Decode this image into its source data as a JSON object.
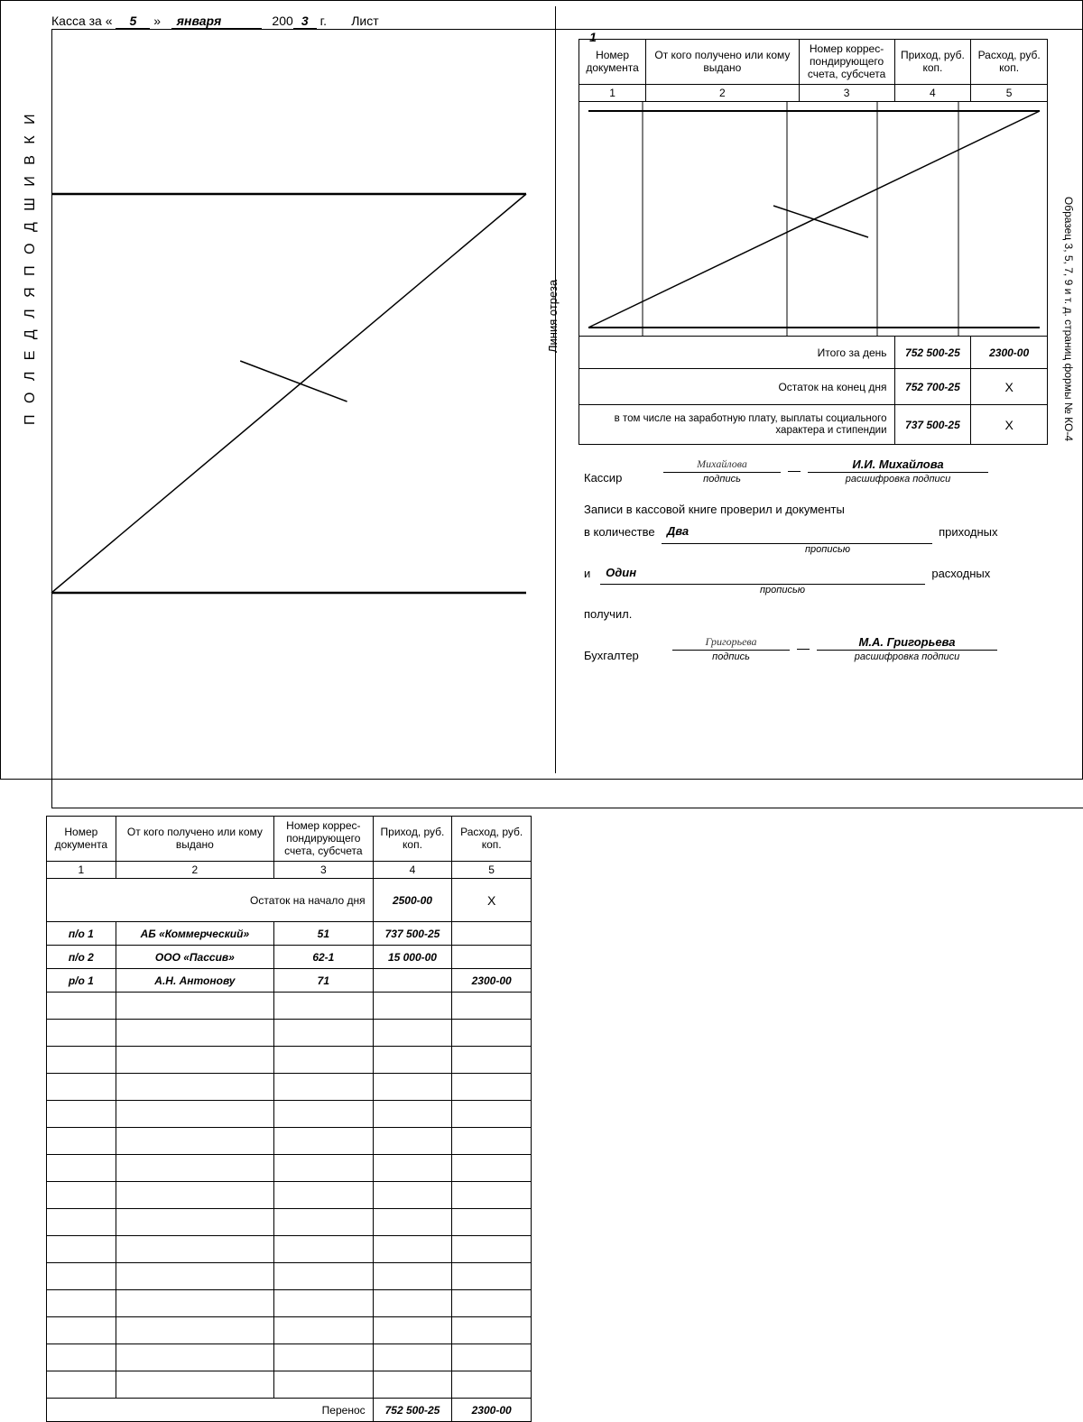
{
  "colors": {
    "line": "#000000",
    "bg": "#ffffff"
  },
  "pageinfo": {
    "kassa_za": "Касса за «",
    "day": "5",
    "raquo": "»",
    "month": "января",
    "year_prefix": "200",
    "year_suffix": "3",
    "year_tail": "г.",
    "sheet_label": "Лист",
    "sheet_no": "1"
  },
  "side_labels": {
    "binding": "П О Л Е   Д Л Я   П О Д Ш И В К И",
    "cut": "Линия отреза",
    "sample": "Образец 3, 5, 7, 9 и т. д. страниц формы № КО-4"
  },
  "columns": {
    "h1": "Номер документа",
    "h2": "От кого получено или кому выдано",
    "h3": "Номер коррес­пондирующего счета, субсчета",
    "h4": "Приход, руб. коп.",
    "h5": "Расход, руб. коп.",
    "n1": "1",
    "n2": "2",
    "n3": "3",
    "n4": "4",
    "n5": "5"
  },
  "left": {
    "opening_label": "Остаток на начало дня",
    "opening_value": "2500-00",
    "opening_x": "Х",
    "rows": [
      {
        "doc": "п/о 1",
        "who": "АБ «Коммерческий»",
        "acc": "51",
        "in": "737 500-25",
        "out": ""
      },
      {
        "doc": "п/о 2",
        "who": "ООО «Пассив»",
        "acc": "62-1",
        "in": "15 000-00",
        "out": ""
      },
      {
        "doc": "р/о 1",
        "who": "А.Н. Антонову",
        "acc": "71",
        "in": "",
        "out": "2300-00"
      }
    ],
    "blank_rows": 15,
    "carry_label": "Перенос",
    "carry_in": "752 500-25",
    "carry_out": "2300-00"
  },
  "right": {
    "totals": {
      "day_label": "Итого за день",
      "day_in": "752 500-25",
      "day_out": "2300-00",
      "closing_label": "Остаток на конец дня",
      "closing_in": "752 700-25",
      "closing_x": "Х",
      "incl_label": "в том числе на заработную плату, выплаты социального характера и стипендии",
      "incl_in": "737 500-25",
      "incl_x": "Х"
    },
    "cashier": {
      "title": "Кассир",
      "sign_value": "Михайлова",
      "sign_cap": "подпись",
      "name_value": "И.И. Михайлова",
      "name_cap": "расшифровка подписи"
    },
    "verify": {
      "line1": "Записи в кассовой книге проверил и документы",
      "qty_lbl": "в количестве",
      "incoming_word": "Два",
      "incoming_tail": "приходных",
      "and": "и",
      "outgoing_word": "Один",
      "outgoing_tail": "расходных",
      "received": "получил.",
      "cap": "прописью"
    },
    "accountant": {
      "title": "Бухгалтер",
      "sign_value": "Григорьева",
      "sign_cap": "подпись",
      "name_value": "М.А. Григорьева",
      "name_cap": "расшифровка подписи"
    }
  }
}
